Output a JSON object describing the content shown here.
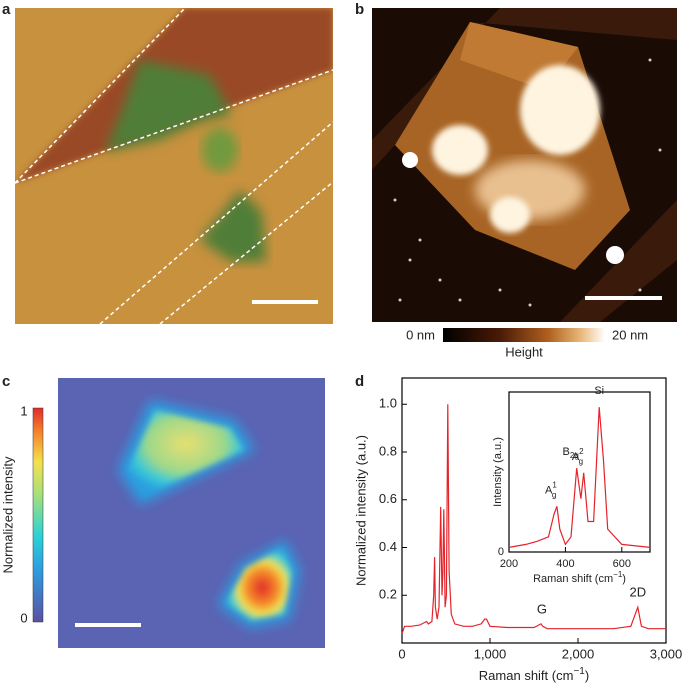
{
  "panels": {
    "a": {
      "label": "a"
    },
    "b": {
      "label": "b",
      "colorbar": {
        "min_label": "0 nm",
        "max_label": "20 nm",
        "title": "Height"
      }
    },
    "c": {
      "label": "c",
      "colorbar": {
        "max_label": "1",
        "min_label": "0",
        "title": "Normalized intensity"
      }
    },
    "d": {
      "label": "d"
    }
  },
  "chart_data": [
    {
      "type": "line",
      "xlabel": [
        "Raman shift (cm",
        "−1",
        ")"
      ],
      "ylabel": "Normalized intensity (a.u.)",
      "xlim": [
        0,
        3000
      ],
      "ylim": [
        0,
        1.11
      ],
      "xticks": [
        0,
        {
          "value": 1000,
          "label": "1,000"
        },
        {
          "value": 2000,
          "label": "2,000"
        },
        {
          "value": 3000,
          "label": "3,000"
        }
      ],
      "yticks": [
        0.2,
        0.4,
        0.6,
        0.8,
        {
          "value": 1,
          "label": "1.0"
        }
      ],
      "annotations": [
        {
          "text": "G",
          "x": 1590,
          "y": 0.08
        },
        {
          "text": "2D",
          "x": 2680,
          "y": 0.15
        }
      ],
      "x": [
        0,
        30,
        100,
        200,
        280,
        300,
        340,
        360,
        370,
        380,
        400,
        420,
        440,
        455,
        465,
        475,
        490,
        505,
        520,
        535,
        560,
        600,
        700,
        800,
        900,
        940,
        960,
        1000,
        1200,
        1500,
        1580,
        1600,
        1650,
        2000,
        2400,
        2600,
        2680,
        2720,
        2800,
        3000
      ],
      "series": [
        {
          "color": "#e3242b",
          "values": [
            0.04,
            0.07,
            0.07,
            0.075,
            0.09,
            0.08,
            0.09,
            0.2,
            0.36,
            0.15,
            0.1,
            0.15,
            0.57,
            0.2,
            0.3,
            0.56,
            0.15,
            0.2,
            1.0,
            0.3,
            0.12,
            0.08,
            0.07,
            0.07,
            0.08,
            0.1,
            0.1,
            0.07,
            0.065,
            0.065,
            0.08,
            0.07,
            0.06,
            0.06,
            0.06,
            0.07,
            0.15,
            0.07,
            0.06,
            0.06
          ]
        }
      ]
    },
    {
      "type": "line",
      "xlabel": [
        "Raman shift (cm",
        "−1",
        ")"
      ],
      "ylabel": "Intensity (a.u.)",
      "xlim": [
        200,
        700
      ],
      "ylim": [
        0,
        1.05
      ],
      "xticks": [
        200,
        400,
        600
      ],
      "yticks": [
        0
      ],
      "annotations": [
        {
          "base": "A",
          "sub": "g",
          "sup": "1",
          "x": 370,
          "y": 0.3
        },
        {
          "base": "B",
          "sub": "2g",
          "x": 440,
          "y": 0.55
        },
        {
          "base": "A",
          "sub": "g",
          "sup": "2",
          "x": 465,
          "y": 0.52
        },
        {
          "base": "Si",
          "x": 520,
          "y": 0.95
        }
      ],
      "x": [
        200,
        260,
        300,
        340,
        360,
        370,
        380,
        400,
        420,
        440,
        455,
        465,
        480,
        500,
        520,
        535,
        550,
        600,
        650,
        700
      ],
      "series": [
        {
          "color": "#e3242b",
          "values": [
            0.03,
            0.05,
            0.07,
            0.1,
            0.25,
            0.3,
            0.15,
            0.05,
            0.1,
            0.55,
            0.35,
            0.52,
            0.2,
            0.2,
            0.95,
            0.6,
            0.15,
            0.05,
            0.04,
            0.03
          ]
        }
      ]
    }
  ]
}
